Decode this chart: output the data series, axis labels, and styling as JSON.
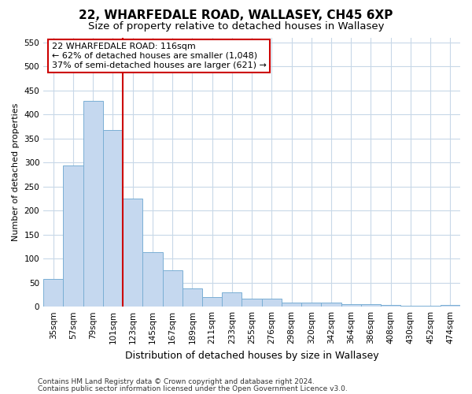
{
  "title1": "22, WHARFEDALE ROAD, WALLASEY, CH45 6XP",
  "title2": "Size of property relative to detached houses in Wallasey",
  "xlabel": "Distribution of detached houses by size in Wallasey",
  "ylabel": "Number of detached properties",
  "categories": [
    "35sqm",
    "57sqm",
    "79sqm",
    "101sqm",
    "123sqm",
    "145sqm",
    "167sqm",
    "189sqm",
    "211sqm",
    "233sqm",
    "255sqm",
    "276sqm",
    "298sqm",
    "320sqm",
    "342sqm",
    "364sqm",
    "386sqm",
    "408sqm",
    "430sqm",
    "452sqm",
    "474sqm"
  ],
  "values": [
    57,
    293,
    428,
    368,
    225,
    113,
    75,
    38,
    20,
    29,
    16,
    17,
    9,
    9,
    8,
    5,
    5,
    4,
    2,
    2,
    3
  ],
  "bar_color": "#c5d8ef",
  "bar_edge_color": "#7aafd4",
  "vline_color": "#cc0000",
  "vline_index": 4,
  "annotation_text": "22 WHARFEDALE ROAD: 116sqm\n← 62% of detached houses are smaller (1,048)\n37% of semi-detached houses are larger (621) →",
  "annotation_box_facecolor": "#ffffff",
  "annotation_box_edgecolor": "#cc0000",
  "ylim": [
    0,
    560
  ],
  "yticks": [
    0,
    50,
    100,
    150,
    200,
    250,
    300,
    350,
    400,
    450,
    500,
    550
  ],
  "footer1": "Contains HM Land Registry data © Crown copyright and database right 2024.",
  "footer2": "Contains public sector information licensed under the Open Government Licence v3.0.",
  "bg_color": "#ffffff",
  "grid_color": "#c8d8e8",
  "title1_fontsize": 11,
  "title2_fontsize": 9.5,
  "xlabel_fontsize": 9,
  "ylabel_fontsize": 8,
  "tick_fontsize": 7.5,
  "annotation_fontsize": 8,
  "footer_fontsize": 6.5
}
